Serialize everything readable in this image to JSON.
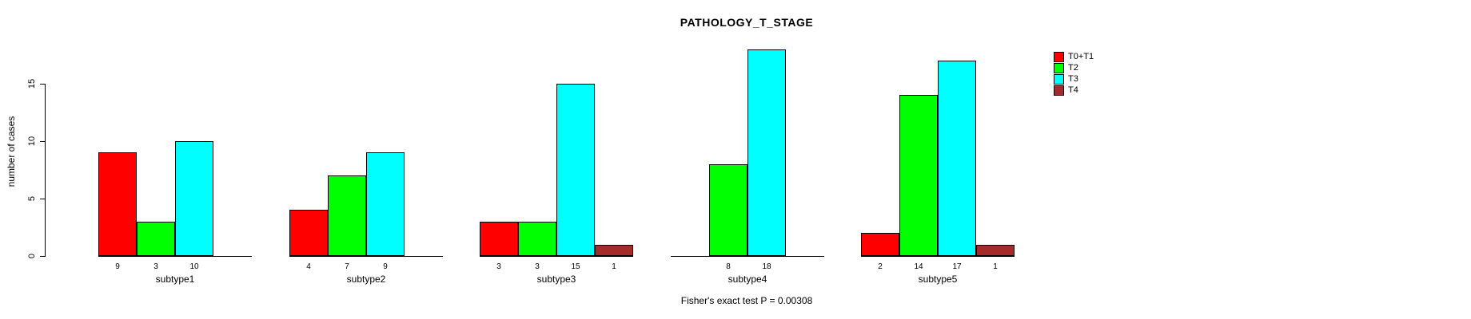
{
  "chart_data": {
    "type": "bar",
    "title": "PATHOLOGY_T_STAGE",
    "xlabel": "",
    "ylabel": "number of cases",
    "ylim": [
      0,
      18
    ],
    "yticks": [
      0,
      5,
      10,
      15
    ],
    "grid": false,
    "legend_position": "right",
    "annotation": "Fisher's exact test P = 0.00308",
    "categories": [
      "subtype1",
      "subtype2",
      "subtype3",
      "subtype4",
      "subtype5"
    ],
    "series": [
      {
        "name": "T0+T1",
        "color": "#ff0000",
        "values": [
          9,
          4,
          3,
          null,
          2
        ]
      },
      {
        "name": "T2",
        "color": "#00ff00",
        "values": [
          3,
          7,
          3,
          8,
          14
        ]
      },
      {
        "name": "T3",
        "color": "#00ffff",
        "values": [
          10,
          9,
          15,
          18,
          17
        ]
      },
      {
        "name": "T4",
        "color": "#a52a2a",
        "values": [
          null,
          null,
          1,
          null,
          1
        ]
      }
    ]
  }
}
